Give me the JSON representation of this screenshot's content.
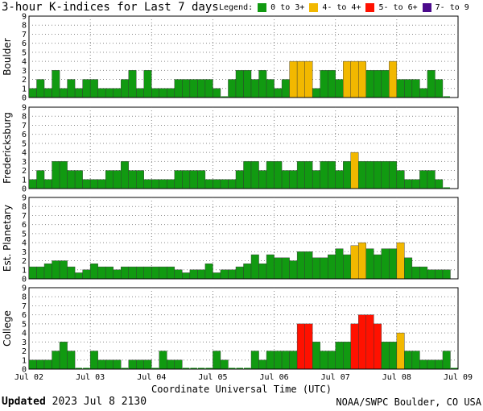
{
  "title": "3-hour K-indices for Last 7 days",
  "legend": {
    "label": "Legend:",
    "items": [
      {
        "text": "0 to 3+",
        "color": "#119A11"
      },
      {
        "text": "4- to 4+",
        "color": "#F2B800"
      },
      {
        "text": "5- to 6+",
        "color": "#FF1100"
      },
      {
        "text": "7- to 9",
        "color": "#4B0A8C"
      }
    ]
  },
  "chart_data": {
    "type": "bar",
    "xlabel": "Coordinate Universal Time (UTC)",
    "x_ticks": [
      "Jul 02",
      "Jul 03",
      "Jul 04",
      "Jul 05",
      "Jul 06",
      "Jul 07",
      "Jul 08",
      "Jul 09"
    ],
    "ylim": [
      0,
      9
    ],
    "y_ticks": [
      "0",
      "1",
      "2",
      "3",
      "4",
      "5",
      "6",
      "7",
      "8",
      "9"
    ],
    "grid": "dotted",
    "intervals_per_day": 8,
    "panels": [
      {
        "name": "Boulder",
        "values": [
          1,
          2,
          1,
          3,
          1,
          2,
          1,
          2,
          2,
          1,
          1,
          1,
          2,
          3,
          1,
          3,
          1,
          1,
          1,
          2,
          2,
          2,
          2,
          2,
          1,
          0,
          2,
          3,
          3,
          2,
          3,
          2,
          1,
          2,
          4,
          4,
          4,
          1,
          3,
          3,
          2,
          4,
          4,
          4,
          3,
          3,
          3,
          4,
          2,
          2,
          2,
          1,
          3,
          2,
          0
        ]
      },
      {
        "name": "Fredericksburg",
        "values": [
          1,
          2,
          1,
          3,
          3,
          2,
          2,
          1,
          1,
          1,
          2,
          2,
          3,
          2,
          2,
          1,
          1,
          1,
          1,
          2,
          2,
          2,
          2,
          1,
          1,
          1,
          1,
          2,
          3,
          3,
          2,
          3,
          3,
          2,
          2,
          3,
          3,
          2,
          3,
          3,
          2,
          3,
          4,
          3,
          3,
          3,
          3,
          3,
          2,
          1,
          1,
          2,
          2,
          1,
          0
        ]
      },
      {
        "name": "Est. Planetary",
        "values": [
          1.33,
          1.33,
          1.67,
          2,
          2,
          1.33,
          0.67,
          1,
          1.67,
          1.33,
          1.33,
          1,
          1.33,
          1.33,
          1.33,
          1.33,
          1.33,
          1.33,
          1.33,
          1,
          0.67,
          1,
          1,
          1.67,
          0.67,
          1,
          1,
          1.33,
          1.67,
          2.67,
          1.67,
          2.67,
          2.33,
          2.33,
          2,
          3,
          3,
          2.33,
          2.33,
          2.67,
          3.33,
          2.67,
          3.67,
          4,
          3.33,
          2.67,
          3.33,
          3.33,
          4,
          2.33,
          1.33,
          1.33,
          1,
          1,
          1
        ]
      },
      {
        "name": "College",
        "values": [
          1,
          1,
          1,
          2,
          3,
          2,
          0,
          0,
          2,
          1,
          1,
          1,
          0,
          1,
          1,
          1,
          0,
          2,
          1,
          1,
          0,
          0,
          0,
          0,
          2,
          1,
          0,
          0,
          0,
          2,
          1,
          2,
          2,
          2,
          2,
          5,
          5,
          3,
          2,
          2,
          3,
          3,
          5,
          6,
          6,
          5,
          3,
          3,
          4,
          2,
          2,
          1,
          1,
          1,
          2,
          0
        ]
      }
    ]
  },
  "footer": {
    "updated_label": "Updated",
    "updated_time": "2023 Jul  8 2130",
    "source": "NOAA/SWPC Boulder, CO USA"
  }
}
